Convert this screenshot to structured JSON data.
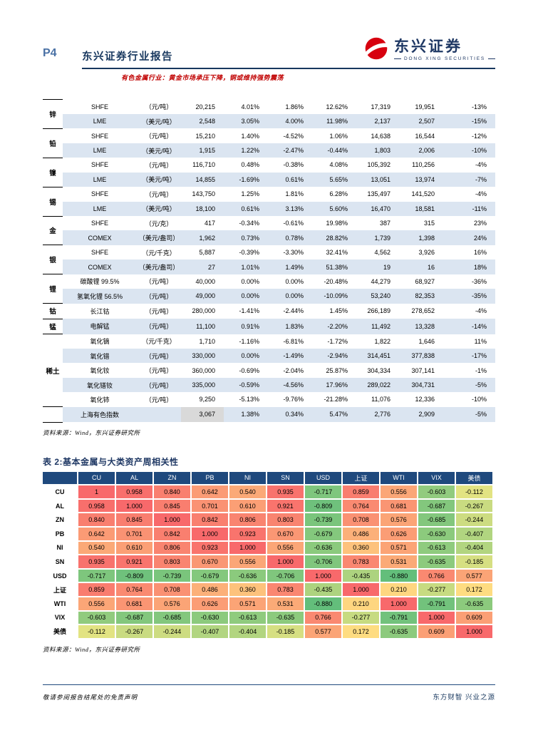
{
  "header": {
    "page_no": "P4",
    "title": "东兴证券行业报告",
    "subtitle": "有色金属行业：黄金市场承压下降，铜或维持强势震荡",
    "logo_name": "东兴证券",
    "logo_sub": "DONG XING SECURITIES"
  },
  "colors": {
    "accent_navy": "#17375e",
    "header_blue": "#1f497d",
    "row_band_blue": "#dbe5f1",
    "summary_gray": "#d9d9d9",
    "brand_red": "#d7000f",
    "subtitle_red": "#c00000",
    "heat_low": "#63be7b",
    "heat_mid": "#ffeb84",
    "heat_high": "#f8696b"
  },
  "price_table": {
    "source": "资料来源：Wind，东兴证券研究所",
    "groups": [
      {
        "label": "锌",
        "rows": [
          {
            "name": "SHFE",
            "unit": "（元/吨）",
            "values": [
              "20,215",
              "4.01%",
              "1.86%",
              "12.62%",
              "17,319",
              "19,951",
              "-13%"
            ]
          },
          {
            "name": "LME",
            "unit": "（美元/吨）",
            "values": [
              "2,548",
              "3.05%",
              "4.00%",
              "11.98%",
              "2,137",
              "2,507",
              "-15%"
            ]
          }
        ]
      },
      {
        "label": "铅",
        "rows": [
          {
            "name": "SHFE",
            "unit": "（元/吨）",
            "values": [
              "15,210",
              "1.40%",
              "-4.52%",
              "1.06%",
              "14,638",
              "16,544",
              "-12%"
            ]
          },
          {
            "name": "LME",
            "unit": "（美元/吨）",
            "values": [
              "1,915",
              "1.22%",
              "-2.47%",
              "-0.44%",
              "1,803",
              "2,006",
              "-10%"
            ]
          }
        ]
      },
      {
        "label": "镍",
        "rows": [
          {
            "name": "SHFE",
            "unit": "（元/吨）",
            "values": [
              "116,710",
              "0.48%",
              "-0.38%",
              "4.08%",
              "105,392",
              "110,256",
              "-4%"
            ]
          },
          {
            "name": "LME",
            "unit": "（美元/吨）",
            "values": [
              "14,855",
              "-1.69%",
              "0.61%",
              "5.65%",
              "13,051",
              "13,974",
              "-7%"
            ]
          }
        ]
      },
      {
        "label": "锡",
        "rows": [
          {
            "name": "SHFE",
            "unit": "（元/吨）",
            "values": [
              "143,750",
              "1.25%",
              "1.81%",
              "6.28%",
              "135,497",
              "141,520",
              "-4%"
            ]
          },
          {
            "name": "LME",
            "unit": "（美元/吨）",
            "values": [
              "18,100",
              "0.61%",
              "3.13%",
              "5.60%",
              "16,470",
              "18,581",
              "-11%"
            ]
          }
        ]
      },
      {
        "label": "金",
        "rows": [
          {
            "name": "SHFE",
            "unit": "（元/克）",
            "values": [
              "417",
              "-0.34%",
              "-0.61%",
              "19.98%",
              "387",
              "315",
              "23%"
            ]
          },
          {
            "name": "COMEX",
            "unit": "（美元/盎司）",
            "values": [
              "1,962",
              "0.73%",
              "0.78%",
              "28.82%",
              "1,739",
              "1,398",
              "24%"
            ]
          }
        ]
      },
      {
        "label": "银",
        "rows": [
          {
            "name": "SHFE",
            "unit": "（元/千克）",
            "values": [
              "5,887",
              "-0.39%",
              "-3.30%",
              "32.41%",
              "4,562",
              "3,926",
              "16%"
            ]
          },
          {
            "name": "COMEX",
            "unit": "（美元/盎司）",
            "values": [
              "27",
              "1.01%",
              "1.49%",
              "51.38%",
              "19",
              "16",
              "18%"
            ]
          }
        ]
      },
      {
        "label": "锂",
        "rows": [
          {
            "name": "碳酸锂 99.5%",
            "unit": "（元/吨）",
            "values": [
              "40,000",
              "0.00%",
              "0.00%",
              "-20.48%",
              "44,279",
              "68,927",
              "-36%"
            ]
          },
          {
            "name": "氢氧化锂 56.5%",
            "unit": "（元/吨）",
            "values": [
              "49,000",
              "0.00%",
              "0.00%",
              "-10.09%",
              "53,240",
              "82,353",
              "-35%"
            ]
          }
        ]
      },
      {
        "label": "钴",
        "rows": [
          {
            "name": "长江钴",
            "unit": "（元/吨）",
            "values": [
              "280,000",
              "-1.41%",
              "-2.44%",
              "1.45%",
              "266,189",
              "278,652",
              "-4%"
            ]
          }
        ]
      },
      {
        "label": "锰",
        "rows": [
          {
            "name": "电解锰",
            "unit": "（元/吨）",
            "values": [
              "11,100",
              "0.91%",
              "1.83%",
              "-2.20%",
              "11,492",
              "13,328",
              "-14%"
            ]
          }
        ]
      },
      {
        "label": "稀土",
        "rows": [
          {
            "name": "氧化镝",
            "unit": "（元/千克）",
            "values": [
              "1,710",
              "-1.16%",
              "-6.81%",
              "-1.72%",
              "1,822",
              "1,646",
              "11%"
            ]
          },
          {
            "name": "氧化镨",
            "unit": "（元/吨）",
            "values": [
              "330,000",
              "0.00%",
              "-1.49%",
              "-2.94%",
              "314,451",
              "377,838",
              "-17%"
            ]
          },
          {
            "name": "氧化钕",
            "unit": "（元/吨）",
            "values": [
              "360,000",
              "-0.69%",
              "-2.04%",
              "25.87%",
              "304,334",
              "307,141",
              "-1%"
            ]
          },
          {
            "name": "氧化镨钕",
            "unit": "（元/吨）",
            "values": [
              "335,000",
              "-0.59%",
              "-4.56%",
              "17.96%",
              "289,022",
              "304,731",
              "-5%"
            ]
          },
          {
            "name": "氧化铈",
            "unit": "（元/吨）",
            "values": [
              "9,250",
              "-5.13%",
              "-9.76%",
              "-21.28%",
              "11,076",
              "12,336",
              "-10%"
            ]
          }
        ]
      }
    ],
    "summary": {
      "name": "上海有色指数",
      "values": [
        "3,067",
        "1.38%",
        "0.34%",
        "5.47%",
        "2,776",
        "2,909",
        "-5%"
      ]
    }
  },
  "correlation": {
    "title": "表 2:基本金属与大类资产周相关性",
    "source": "资料来源：Wind，东兴证券研究所",
    "headers": [
      "CU",
      "AL",
      "ZN",
      "PB",
      "NI",
      "SN",
      "USD",
      "上证",
      "WTI",
      "VIX",
      "美债"
    ],
    "rows": [
      {
        "label": "CU",
        "values": [
          "1",
          "0.958",
          "0.840",
          "0.642",
          "0.540",
          "0.935",
          "-0.717",
          "0.859",
          "0.556",
          "-0.603",
          "-0.112"
        ]
      },
      {
        "label": "AL",
        "values": [
          "0.958",
          "1.000",
          "0.845",
          "0.701",
          "0.610",
          "0.921",
          "-0.809",
          "0.764",
          "0.681",
          "-0.687",
          "-0.267"
        ]
      },
      {
        "label": "ZN",
        "values": [
          "0.840",
          "0.845",
          "1.000",
          "0.842",
          "0.806",
          "0.803",
          "-0.739",
          "0.708",
          "0.576",
          "-0.685",
          "-0.244"
        ]
      },
      {
        "label": "PB",
        "values": [
          "0.642",
          "0.701",
          "0.842",
          "1.000",
          "0.923",
          "0.670",
          "-0.679",
          "0.486",
          "0.626",
          "-0.630",
          "-0.407"
        ]
      },
      {
        "label": "NI",
        "values": [
          "0.540",
          "0.610",
          "0.806",
          "0.923",
          "1.000",
          "0.556",
          "-0.636",
          "0.360",
          "0.571",
          "-0.613",
          "-0.404"
        ]
      },
      {
        "label": "SN",
        "values": [
          "0.935",
          "0.921",
          "0.803",
          "0.670",
          "0.556",
          "1.000",
          "-0.706",
          "0.783",
          "0.531",
          "-0.635",
          "-0.185"
        ]
      },
      {
        "label": "USD",
        "values": [
          "-0.717",
          "-0.809",
          "-0.739",
          "-0.679",
          "-0.636",
          "-0.706",
          "1.000",
          "-0.435",
          "-0.880",
          "0.766",
          "0.577"
        ]
      },
      {
        "label": "上证",
        "values": [
          "0.859",
          "0.764",
          "0.708",
          "0.486",
          "0.360",
          "0.783",
          "-0.435",
          "1.000",
          "0.210",
          "-0.277",
          "0.172"
        ]
      },
      {
        "label": "WTI",
        "values": [
          "0.556",
          "0.681",
          "0.576",
          "0.626",
          "0.571",
          "0.531",
          "-0.880",
          "0.210",
          "1.000",
          "-0.791",
          "-0.635"
        ]
      },
      {
        "label": "VIX",
        "values": [
          "-0.603",
          "-0.687",
          "-0.685",
          "-0.630",
          "-0.613",
          "-0.635",
          "0.766",
          "-0.277",
          "-0.791",
          "1.000",
          "0.609"
        ]
      },
      {
        "label": "美债",
        "values": [
          "-0.112",
          "-0.267",
          "-0.244",
          "-0.407",
          "-0.404",
          "-0.185",
          "0.577",
          "0.172",
          "-0.635",
          "0.609",
          "1.000"
        ]
      }
    ]
  },
  "footer": {
    "left": "敬请参阅报告结尾处的免责声明",
    "right": "东方财智  兴业之源"
  }
}
